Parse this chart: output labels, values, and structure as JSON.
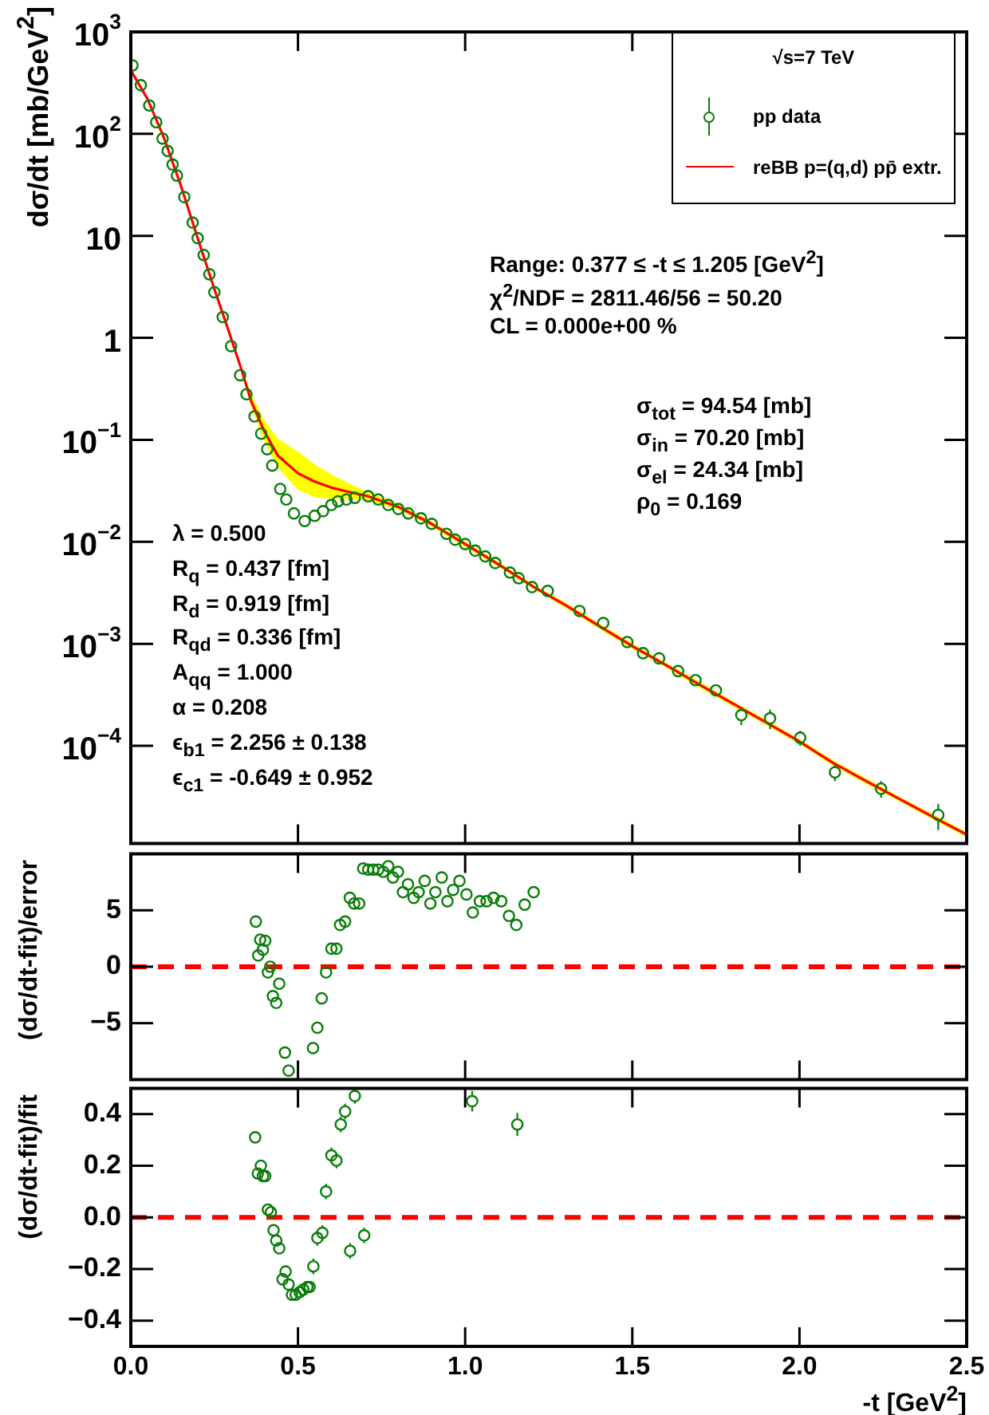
{
  "chart_data": [
    {
      "type": "scatter",
      "ylabel": "dσ/dt [mb/GeV$^{2}$]",
      "legend_title": "√s=7 TeV",
      "legend": "top right",
      "log": "y",
      "tick_labels": "y",
      "grid": false,
      "xlim": [
        0,
        2.5
      ],
      "xticks": [
        0,
        0.5,
        1,
        1.5,
        2,
        2.5
      ],
      "ylim": [
        1.1e-05,
        1000
      ],
      "yticks": [
        {
          "value": 0.0001,
          "label": "10$^{−4}$"
        },
        {
          "value": 0.001,
          "label": "10$^{−3}$"
        },
        {
          "value": 0.01,
          "label": "10$^{−2}$"
        },
        {
          "value": 0.1,
          "label": "10$^{−1}$"
        },
        1,
        10,
        {
          "value": 100,
          "label": "10$^{2}$"
        },
        {
          "value": 1000,
          "label": "10$^{3}$"
        }
      ],
      "annotations": [
        "Range: 0.377 ≤ -t ≤ 1.205 [GeV$^{2}$]",
        "χ$^{2}$/NDF = 2811.46/56 = 50.20",
        "CL = 0.000e+00 %",
        "σ$_{tot}$ = 94.54 [mb]",
        "σ$_{in}$ = 70.20 [mb]",
        "σ$_{el}$ = 24.34 [mb]",
        "ρ$_{0}$ = 0.169",
        "λ = 0.500",
        "R$_{q}$ = 0.437 [fm]",
        "R$_{d}$ = 0.919 [fm]",
        "R$_{qd}$ = 0.336 [fm]",
        "A$_{qq}$ = 1.000",
        "α = 0.208",
        "ϵ$_{b1}$ = 2.256 ± 0.138",
        "ϵ$_{c1}$ = -0.649 ± 0.952"
      ],
      "series": [
        {
          "name": "pp data",
          "type": "scatter",
          "marker": "circle",
          "color": "#0a7d0a",
          "x": [
            0.005,
            0.03,
            0.055,
            0.076,
            0.095,
            0.11,
            0.125,
            0.138,
            0.16,
            0.185,
            0.2,
            0.218,
            0.235,
            0.25,
            0.275,
            0.3,
            0.327,
            0.346,
            0.37,
            0.39,
            0.408,
            0.423,
            0.447,
            0.465,
            0.488,
            0.52,
            0.55,
            0.575,
            0.6,
            0.62,
            0.645,
            0.67,
            0.71,
            0.74,
            0.77,
            0.8,
            0.83,
            0.868,
            0.9,
            0.944,
            0.97,
            1.0,
            1.03,
            1.06,
            1.09,
            1.134,
            1.16,
            1.2,
            1.247,
            1.342,
            1.413,
            1.485,
            1.532,
            1.58,
            1.637,
            1.689,
            1.75,
            1.826,
            1.912,
            2.002,
            2.106,
            2.244,
            2.415
          ],
          "values": [
            470,
            300,
            190,
            130,
            90,
            68,
            50,
            39,
            24,
            13.5,
            9.5,
            6.5,
            4.2,
            2.8,
            1.6,
            0.83,
            0.43,
            0.28,
            0.17,
            0.115,
            0.081,
            0.056,
            0.033,
            0.026,
            0.019,
            0.016,
            0.018,
            0.02,
            0.023,
            0.025,
            0.026,
            0.027,
            0.028,
            0.026,
            0.023,
            0.021,
            0.019,
            0.017,
            0.015,
            0.012,
            0.0105,
            0.0095,
            0.0082,
            0.0072,
            0.0062,
            0.005,
            0.0044,
            0.0036,
            0.0033,
            0.0021,
            0.0016,
            0.00104,
            0.00081,
            0.00072,
            0.00054,
            0.00044,
            0.00035,
            0.0002,
            0.000186,
            0.00012,
            5.5e-05,
            3.8e-05,
            2.1e-05
          ],
          "errors": [
            null,
            null,
            null,
            null,
            null,
            null,
            null,
            null,
            null,
            null,
            null,
            null,
            null,
            null,
            null,
            null,
            null,
            null,
            null,
            null,
            null,
            null,
            null,
            null,
            null,
            null,
            null,
            null,
            null,
            null,
            null,
            null,
            null,
            null,
            null,
            null,
            null,
            null,
            null,
            null,
            null,
            null,
            null,
            null,
            null,
            null,
            null,
            null,
            null,
            null,
            null,
            null,
            null,
            null,
            null,
            null,
            null,
            4e-05,
            4e-05,
            2e-05,
            1e-05,
            7e-06,
            6e-06
          ]
        },
        {
          "name": "reBB p=(q,d) pp̄ extr.",
          "type": "line",
          "color": "#ff0000",
          "x": [
            0,
            0.05,
            0.1,
            0.15,
            0.2,
            0.25,
            0.29,
            0.33,
            0.36,
            0.4,
            0.44,
            0.5,
            0.55,
            0.6,
            0.65,
            0.71,
            0.8,
            0.9,
            1.0,
            1.1,
            1.2,
            1.3,
            1.4,
            1.5,
            1.6,
            1.7,
            1.8,
            1.9,
            2.0,
            2.1,
            2.2,
            2.3,
            2.4,
            2.5
          ],
          "values": [
            420,
            220,
            90,
            31,
            9.5,
            3.0,
            1.24,
            0.5,
            0.24,
            0.12,
            0.07,
            0.047,
            0.039,
            0.034,
            0.031,
            0.028,
            0.022,
            0.015,
            0.0095,
            0.006,
            0.0037,
            0.0024,
            0.0015,
            0.00095,
            0.00062,
            0.0004,
            0.00026,
            0.00017,
            0.00011,
            6.8e-05,
            4.5e-05,
            3e-05,
            2e-05,
            1.35e-05
          ],
          "lower": [
            420,
            220,
            90,
            31,
            9.5,
            3.0,
            1.24,
            0.5,
            0.22,
            0.1,
            0.055,
            0.033,
            0.028,
            0.027,
            0.027,
            0.026,
            0.021,
            0.0144,
            0.0091,
            0.0058,
            0.0036,
            0.0023,
            0.00144,
            0.00091,
            0.0006,
            0.00038,
            0.00025,
            0.000163,
            0.000106,
            6.5e-05,
            4.3e-05,
            2.9e-05,
            1.92e-05,
            1.3e-05
          ],
          "upper": [
            420,
            220,
            90,
            31,
            9.5,
            3.0,
            1.24,
            0.5,
            0.27,
            0.15,
            0.1,
            0.075,
            0.056,
            0.045,
            0.037,
            0.03,
            0.023,
            0.0156,
            0.0099,
            0.0062,
            0.0038,
            0.0025,
            0.00156,
            0.00099,
            0.00064,
            0.00042,
            0.00027,
            0.000177,
            0.000114,
            7.1e-05,
            4.7e-05,
            3.1e-05,
            2.08e-05,
            1.4e-05
          ]
        }
      ]
    },
    {
      "type": "scatter",
      "ylabel": "(dσ/dt-fit)/error",
      "marker": "circle",
      "tick_labels": "y",
      "grid": false,
      "xlim": [
        0,
        2.5
      ],
      "xticks": [
        0,
        0.5,
        1,
        1.5,
        2,
        2.5
      ],
      "ylim": [
        -10,
        10
      ],
      "yticks": [
        {
          "value": -5,
          "label": "−5"
        },
        0,
        5
      ],
      "ref_lines": [
        {
          "axis": "y",
          "value": 0,
          "color": "#ff0000",
          "line_style": "dashed"
        }
      ],
      "series": [
        {
          "type": "scatter",
          "color": "#0a7d0a",
          "x": [
            0.374,
            0.381,
            0.387,
            0.395,
            0.402,
            0.41,
            0.417,
            0.425,
            0.435,
            0.444,
            0.461,
            0.472,
            0.545,
            0.558,
            0.571,
            0.584,
            0.6,
            0.615,
            0.626,
            0.641,
            0.655,
            0.668,
            0.683,
            0.695,
            0.71,
            0.725,
            0.74,
            0.755,
            0.77,
            0.784,
            0.799,
            0.814,
            0.829,
            0.846,
            0.861,
            0.879,
            0.896,
            0.911,
            0.93,
            0.947,
            0.964,
            0.983,
            1.004,
            1.023,
            1.044,
            1.064,
            1.085,
            1.108,
            1.131,
            1.153,
            1.178,
            1.205
          ],
          "values": [
            4.0,
            1.0,
            2.4,
            1.5,
            2.3,
            -0.5,
            0,
            -2.6,
            -3.2,
            -1.5,
            -7.6,
            -9.2,
            -7.2,
            -5.4,
            -2.8,
            -0.5,
            1.6,
            1.6,
            3.7,
            4.0,
            6.1,
            5.6,
            5.6,
            8.7,
            8.6,
            8.6,
            8.6,
            8.4,
            8.9,
            7.9,
            8.4,
            6.6,
            7.3,
            6.1,
            6.6,
            7.6,
            5.6,
            6.6,
            7.9,
            5.8,
            6.8,
            7.6,
            6.4,
            4.8,
            5.8,
            5.8,
            6.1,
            5.8,
            4.5,
            3.7,
            5.5,
            6.6
          ]
        }
      ]
    },
    {
      "type": "scatter",
      "ylabel": "(dσ/dt-fit)/fit",
      "xlabel": "-t [GeV$^{2}$]",
      "marker": "circle",
      "grid": false,
      "xlim": [
        0,
        2.5
      ],
      "xticks": [
        {
          "value": 0,
          "label": "0.0"
        },
        {
          "value": 0.5,
          "label": "0.5"
        },
        {
          "value": 1,
          "label": "1.0"
        },
        {
          "value": 1.5,
          "label": "1.5"
        },
        {
          "value": 2,
          "label": "2.0"
        },
        {
          "value": 2.5,
          "label": "2.5"
        }
      ],
      "ylim": [
        -0.5,
        0.5
      ],
      "yticks": [
        {
          "value": -0.4,
          "label": "−0.4"
        },
        {
          "value": -0.2,
          "label": "−0.2"
        },
        {
          "value": 0,
          "label": "0.0"
        },
        0.2,
        0.4
      ],
      "ref_lines": [
        {
          "axis": "y",
          "value": 0,
          "color": "#ff0000",
          "line_style": "dashed"
        }
      ],
      "series": [
        {
          "type": "scatter",
          "color": "#0a7d0a",
          "x": [
            0.372,
            0.38,
            0.389,
            0.395,
            0.402,
            0.41,
            0.419,
            0.427,
            0.435,
            0.444,
            0.454,
            0.463,
            0.472,
            0.482,
            0.493,
            0.505,
            0.516,
            0.528,
            0.535,
            0.546,
            0.558,
            0.573,
            0.584,
            0.6,
            0.615,
            0.628,
            0.641,
            0.656,
            0.67,
            0.698,
            1.021,
            1.156
          ],
          "values": [
            0.31,
            0.17,
            0.2,
            0.16,
            0.16,
            0.03,
            0.02,
            -0.05,
            -0.09,
            -0.12,
            -0.24,
            -0.21,
            -0.26,
            -0.3,
            -0.3,
            -0.29,
            -0.28,
            -0.27,
            -0.27,
            -0.19,
            -0.08,
            -0.06,
            0.1,
            0.24,
            0.22,
            0.36,
            0.41,
            -0.13,
            0.47,
            -0.07,
            0.45,
            0.36
          ],
          "errors": [
            null,
            null,
            null,
            null,
            null,
            null,
            null,
            null,
            null,
            null,
            null,
            null,
            null,
            null,
            null,
            null,
            null,
            null,
            null,
            0.03,
            0.03,
            0.03,
            0.03,
            0.03,
            0.03,
            0.03,
            0.03,
            0.03,
            0.03,
            0.03,
            0.04,
            0.045
          ]
        }
      ]
    }
  ]
}
